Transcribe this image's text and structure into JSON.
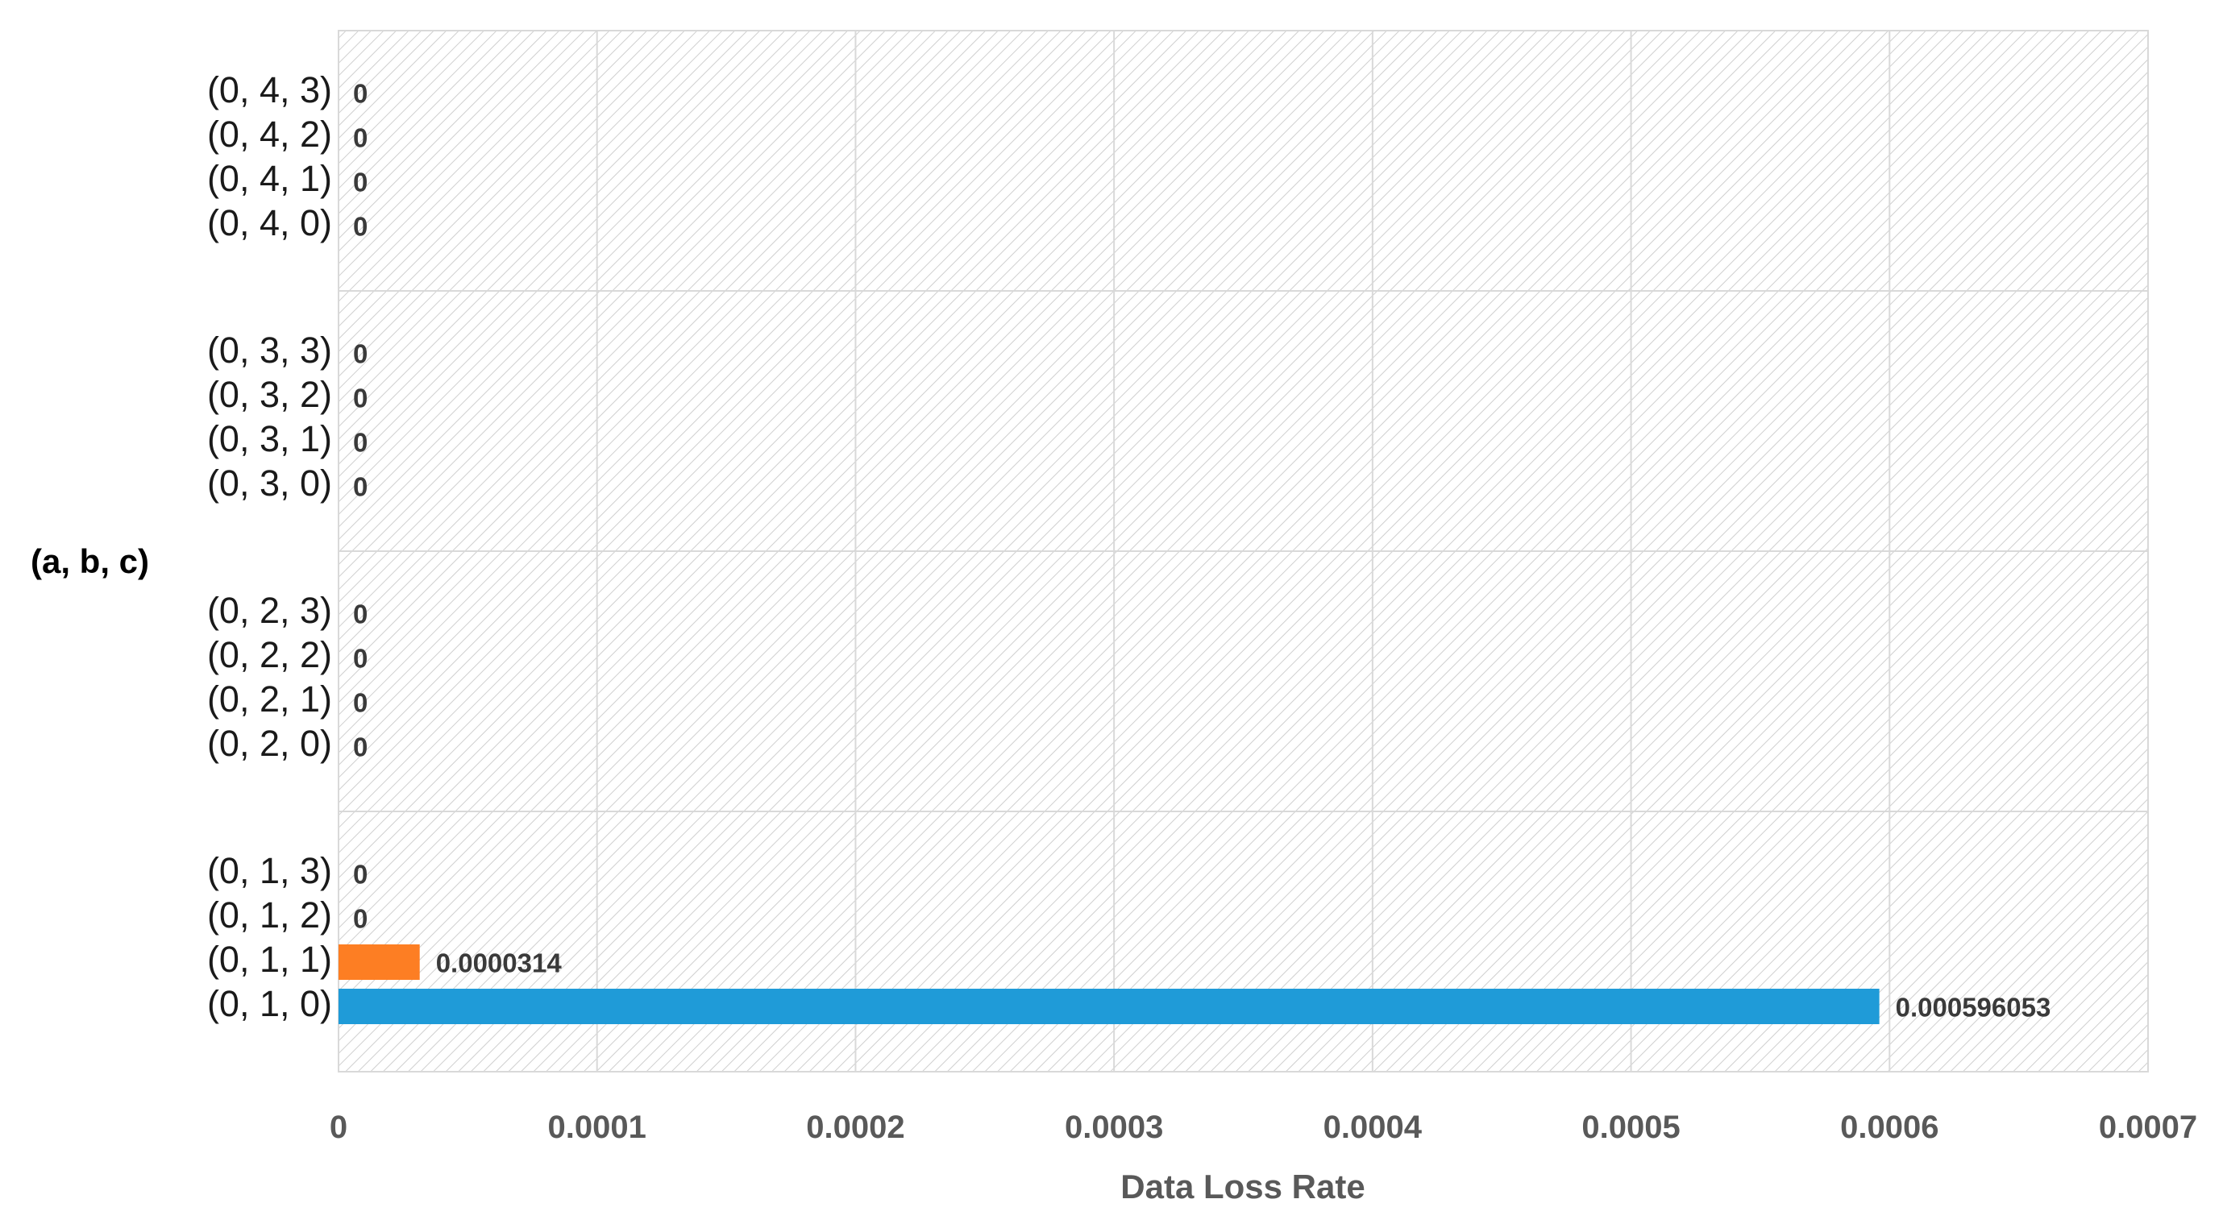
{
  "chart_data": {
    "type": "bar",
    "orientation": "horizontal",
    "title": "",
    "xlabel": "Data Loss Rate",
    "ylabel": "(a, b, c)",
    "xlim": [
      0,
      0.0007
    ],
    "xticks": [
      0,
      0.0001,
      0.0002,
      0.0003,
      0.0004,
      0.0005,
      0.0006,
      0.0007
    ],
    "xtick_labels": [
      "0",
      "0.0001",
      "0.0002",
      "0.0003",
      "0.0004",
      "0.0005",
      "0.0006",
      "0.0007"
    ],
    "grid": true,
    "legend": "none",
    "bar_colors": [
      "#1f9bd8",
      "#fd7e23",
      "#a5a5a5",
      "#ffc000"
    ],
    "groups": [
      {
        "categories": [
          "(0, 1, 0)",
          "(0, 1, 1)",
          "(0, 1, 2)",
          "(0, 1, 3)"
        ],
        "values": [
          0.000596053,
          3.14e-05,
          0,
          0
        ],
        "value_labels": [
          "0.000596053",
          "0.0000314",
          "0",
          "0"
        ]
      },
      {
        "categories": [
          "(0, 2, 0)",
          "(0, 2, 1)",
          "(0, 2, 2)",
          "(0, 2, 3)"
        ],
        "values": [
          0,
          0,
          0,
          0
        ],
        "value_labels": [
          "0",
          "0",
          "0",
          "0"
        ]
      },
      {
        "categories": [
          "(0, 3, 0)",
          "(0, 3, 1)",
          "(0, 3, 2)",
          "(0, 3, 3)"
        ],
        "values": [
          0,
          0,
          0,
          0
        ],
        "value_labels": [
          "0",
          "0",
          "0",
          "0"
        ]
      },
      {
        "categories": [
          "(0, 4, 0)",
          "(0, 4, 1)",
          "(0, 4, 2)",
          "(0, 4, 3)"
        ],
        "values": [
          0,
          0,
          0,
          0
        ],
        "value_labels": [
          "0",
          "0",
          "0",
          "0"
        ]
      }
    ]
  }
}
